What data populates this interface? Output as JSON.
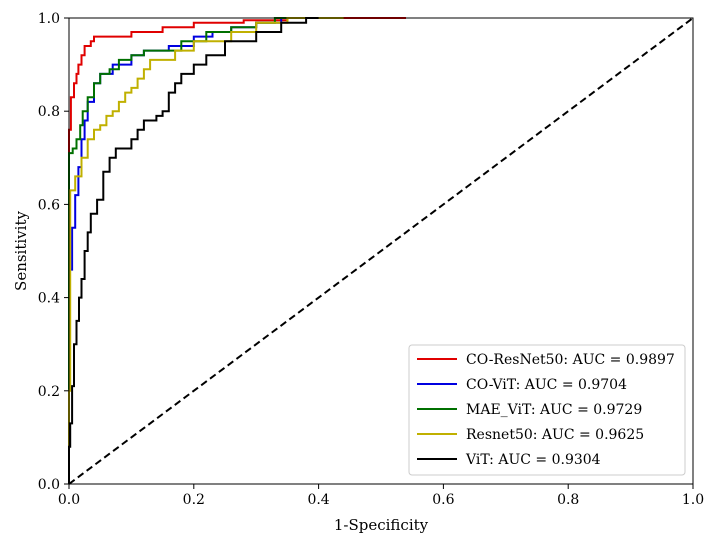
{
  "chart_data": {
    "type": "line",
    "title": "",
    "xlabel": "1-Specificity",
    "ylabel": "Sensitivity",
    "xlim": [
      0.0,
      1.0
    ],
    "ylim": [
      0.0,
      1.0
    ],
    "x_ticks": [
      "0.0",
      "0.2",
      "0.4",
      "0.6",
      "0.8",
      "1.0"
    ],
    "y_ticks": [
      "0.0",
      "0.2",
      "0.4",
      "0.6",
      "0.8",
      "1.0"
    ],
    "grid": false,
    "legend_position": "lower-right",
    "series": [
      {
        "name": "CO-ResNet50: AUC = 0.9897",
        "color": "#e00000",
        "points": [
          [
            0,
            0
          ],
          [
            0,
            0.76
          ],
          [
            0.003,
            0.76
          ],
          [
            0.003,
            0.83
          ],
          [
            0.008,
            0.83
          ],
          [
            0.008,
            0.86
          ],
          [
            0.012,
            0.86
          ],
          [
            0.012,
            0.88
          ],
          [
            0.015,
            0.88
          ],
          [
            0.015,
            0.9
          ],
          [
            0.02,
            0.9
          ],
          [
            0.02,
            0.92
          ],
          [
            0.025,
            0.92
          ],
          [
            0.025,
            0.94
          ],
          [
            0.035,
            0.94
          ],
          [
            0.035,
            0.95
          ],
          [
            0.04,
            0.95
          ],
          [
            0.04,
            0.96
          ],
          [
            0.1,
            0.96
          ],
          [
            0.1,
            0.97
          ],
          [
            0.15,
            0.97
          ],
          [
            0.15,
            0.98
          ],
          [
            0.2,
            0.98
          ],
          [
            0.2,
            0.99
          ],
          [
            0.28,
            0.99
          ],
          [
            0.28,
            0.995
          ],
          [
            0.35,
            0.995
          ],
          [
            0.35,
            1.0
          ],
          [
            0.54,
            1.0
          ]
        ]
      },
      {
        "name": "CO-ViT: AUC = 0.9704",
        "color": "#0000e0",
        "points": [
          [
            0,
            0
          ],
          [
            0,
            0.46
          ],
          [
            0.005,
            0.46
          ],
          [
            0.005,
            0.55
          ],
          [
            0.01,
            0.55
          ],
          [
            0.01,
            0.62
          ],
          [
            0.015,
            0.62
          ],
          [
            0.015,
            0.68
          ],
          [
            0.02,
            0.68
          ],
          [
            0.02,
            0.74
          ],
          [
            0.025,
            0.74
          ],
          [
            0.025,
            0.78
          ],
          [
            0.03,
            0.78
          ],
          [
            0.03,
            0.82
          ],
          [
            0.04,
            0.82
          ],
          [
            0.04,
            0.86
          ],
          [
            0.05,
            0.86
          ],
          [
            0.05,
            0.88
          ],
          [
            0.07,
            0.88
          ],
          [
            0.07,
            0.9
          ],
          [
            0.1,
            0.9
          ],
          [
            0.1,
            0.92
          ],
          [
            0.12,
            0.92
          ],
          [
            0.12,
            0.93
          ],
          [
            0.16,
            0.93
          ],
          [
            0.16,
            0.94
          ],
          [
            0.2,
            0.94
          ],
          [
            0.2,
            0.96
          ],
          [
            0.23,
            0.96
          ],
          [
            0.23,
            0.97
          ],
          [
            0.26,
            0.97
          ],
          [
            0.26,
            0.98
          ],
          [
            0.3,
            0.98
          ],
          [
            0.3,
            0.99
          ],
          [
            0.34,
            0.99
          ],
          [
            0.34,
            1.0
          ],
          [
            0.4,
            1.0
          ]
        ]
      },
      {
        "name": "MAE_ViT: AUC = 0.9729",
        "color": "#007000",
        "points": [
          [
            0,
            0
          ],
          [
            0,
            0.71
          ],
          [
            0.006,
            0.71
          ],
          [
            0.006,
            0.72
          ],
          [
            0.012,
            0.72
          ],
          [
            0.012,
            0.74
          ],
          [
            0.018,
            0.74
          ],
          [
            0.018,
            0.77
          ],
          [
            0.022,
            0.77
          ],
          [
            0.022,
            0.8
          ],
          [
            0.03,
            0.8
          ],
          [
            0.03,
            0.83
          ],
          [
            0.04,
            0.83
          ],
          [
            0.04,
            0.86
          ],
          [
            0.05,
            0.86
          ],
          [
            0.05,
            0.88
          ],
          [
            0.065,
            0.88
          ],
          [
            0.065,
            0.89
          ],
          [
            0.08,
            0.89
          ],
          [
            0.08,
            0.91
          ],
          [
            0.1,
            0.91
          ],
          [
            0.1,
            0.92
          ],
          [
            0.12,
            0.92
          ],
          [
            0.12,
            0.93
          ],
          [
            0.18,
            0.93
          ],
          [
            0.18,
            0.95
          ],
          [
            0.22,
            0.95
          ],
          [
            0.22,
            0.97
          ],
          [
            0.26,
            0.97
          ],
          [
            0.26,
            0.98
          ],
          [
            0.3,
            0.98
          ],
          [
            0.3,
            0.99
          ],
          [
            0.33,
            0.99
          ],
          [
            0.33,
            1.0
          ],
          [
            0.4,
            1.0
          ]
        ]
      },
      {
        "name": "Resnet50: AUC = 0.9625",
        "color": "#c0b000",
        "points": [
          [
            0,
            0
          ],
          [
            0,
            0.2
          ],
          [
            0.002,
            0.2
          ],
          [
            0.002,
            0.63
          ],
          [
            0.01,
            0.63
          ],
          [
            0.01,
            0.66
          ],
          [
            0.02,
            0.66
          ],
          [
            0.02,
            0.7
          ],
          [
            0.03,
            0.7
          ],
          [
            0.03,
            0.74
          ],
          [
            0.04,
            0.74
          ],
          [
            0.04,
            0.76
          ],
          [
            0.05,
            0.76
          ],
          [
            0.05,
            0.77
          ],
          [
            0.06,
            0.77
          ],
          [
            0.06,
            0.79
          ],
          [
            0.07,
            0.79
          ],
          [
            0.07,
            0.8
          ],
          [
            0.08,
            0.8
          ],
          [
            0.08,
            0.82
          ],
          [
            0.09,
            0.82
          ],
          [
            0.09,
            0.84
          ],
          [
            0.1,
            0.84
          ],
          [
            0.1,
            0.85
          ],
          [
            0.11,
            0.85
          ],
          [
            0.11,
            0.87
          ],
          [
            0.12,
            0.87
          ],
          [
            0.12,
            0.89
          ],
          [
            0.13,
            0.89
          ],
          [
            0.13,
            0.91
          ],
          [
            0.17,
            0.91
          ],
          [
            0.17,
            0.93
          ],
          [
            0.2,
            0.93
          ],
          [
            0.2,
            0.95
          ],
          [
            0.26,
            0.95
          ],
          [
            0.26,
            0.97
          ],
          [
            0.3,
            0.97
          ],
          [
            0.3,
            0.99
          ],
          [
            0.35,
            0.99
          ],
          [
            0.35,
            1.0
          ],
          [
            0.44,
            1.0
          ]
        ]
      },
      {
        "name": "ViT: AUC = 0.9304",
        "color": "#000000",
        "points": [
          [
            0,
            0
          ],
          [
            0,
            0.08
          ],
          [
            0.002,
            0.08
          ],
          [
            0.002,
            0.13
          ],
          [
            0.005,
            0.13
          ],
          [
            0.005,
            0.21
          ],
          [
            0.008,
            0.21
          ],
          [
            0.008,
            0.3
          ],
          [
            0.012,
            0.3
          ],
          [
            0.012,
            0.35
          ],
          [
            0.016,
            0.35
          ],
          [
            0.016,
            0.4
          ],
          [
            0.02,
            0.4
          ],
          [
            0.02,
            0.44
          ],
          [
            0.025,
            0.44
          ],
          [
            0.025,
            0.5
          ],
          [
            0.03,
            0.5
          ],
          [
            0.03,
            0.54
          ],
          [
            0.035,
            0.54
          ],
          [
            0.035,
            0.58
          ],
          [
            0.045,
            0.58
          ],
          [
            0.045,
            0.61
          ],
          [
            0.055,
            0.61
          ],
          [
            0.055,
            0.67
          ],
          [
            0.065,
            0.67
          ],
          [
            0.065,
            0.7
          ],
          [
            0.075,
            0.7
          ],
          [
            0.075,
            0.72
          ],
          [
            0.1,
            0.72
          ],
          [
            0.1,
            0.74
          ],
          [
            0.11,
            0.74
          ],
          [
            0.11,
            0.76
          ],
          [
            0.12,
            0.76
          ],
          [
            0.12,
            0.78
          ],
          [
            0.14,
            0.78
          ],
          [
            0.14,
            0.79
          ],
          [
            0.15,
            0.79
          ],
          [
            0.15,
            0.8
          ],
          [
            0.16,
            0.8
          ],
          [
            0.16,
            0.84
          ],
          [
            0.17,
            0.84
          ],
          [
            0.17,
            0.86
          ],
          [
            0.18,
            0.86
          ],
          [
            0.18,
            0.88
          ],
          [
            0.2,
            0.88
          ],
          [
            0.2,
            0.9
          ],
          [
            0.22,
            0.9
          ],
          [
            0.22,
            0.92
          ],
          [
            0.25,
            0.92
          ],
          [
            0.25,
            0.95
          ],
          [
            0.3,
            0.95
          ],
          [
            0.3,
            0.97
          ],
          [
            0.34,
            0.97
          ],
          [
            0.34,
            0.99
          ],
          [
            0.38,
            0.99
          ],
          [
            0.38,
            1.0
          ],
          [
            0.4,
            1.0
          ]
        ]
      }
    ],
    "reference_line": {
      "style": "dashed",
      "color": "#000000",
      "points": [
        [
          0,
          0
        ],
        [
          1,
          1
        ]
      ]
    }
  }
}
